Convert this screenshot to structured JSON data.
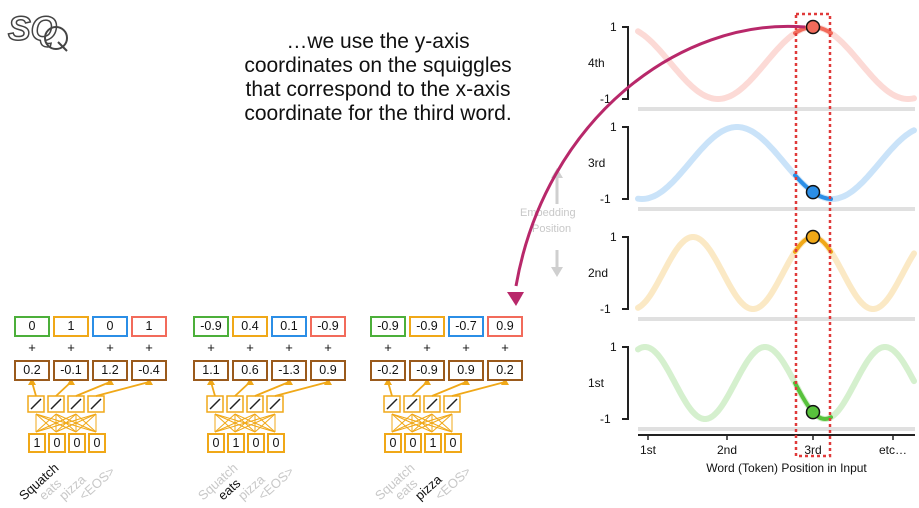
{
  "logo_text": "SQ",
  "caption": [
    "…we use the y-axis",
    "coordinates on the squiggles",
    "that correspond to the x-axis",
    "coordinate for the third word."
  ],
  "token_groups": [
    {
      "pos_values": [
        "0",
        "1",
        "0",
        "1"
      ],
      "emb_values": [
        "0.2",
        "-0.1",
        "1.2",
        "-0.4"
      ],
      "onehot": [
        "1",
        "0",
        "0",
        "0"
      ],
      "active_word": 0
    },
    {
      "pos_values": [
        "-0.9",
        "0.4",
        "0.1",
        "-0.9"
      ],
      "emb_values": [
        "1.1",
        "0.6",
        "-1.3",
        "0.9"
      ],
      "onehot": [
        "0",
        "1",
        "0",
        "0"
      ],
      "active_word": 1
    },
    {
      "pos_values": [
        "-0.9",
        "-0.9",
        "-0.7",
        "0.9"
      ],
      "emb_values": [
        "-0.2",
        "-0.9",
        "0.9",
        "0.2"
      ],
      "onehot": [
        "0",
        "0",
        "1",
        "0"
      ],
      "active_word": 2
    }
  ],
  "words": [
    "Squatch",
    "eats",
    "pizza",
    "<EOS>"
  ],
  "plus_sign": "+",
  "embedding_label": [
    "Embedding",
    "Position"
  ],
  "squiggle_rows": [
    {
      "label": "4th",
      "color": "#f26b5b",
      "freq": 1,
      "phase": 0
    },
    {
      "label": "3rd",
      "color": "#2b8ee6",
      "freq": 1,
      "phase": 1
    },
    {
      "label": "2nd",
      "color": "#f0a818",
      "freq": 2,
      "phase": 0
    },
    {
      "label": "1st",
      "color": "#58c23c",
      "freq": 2,
      "phase": 1
    }
  ],
  "y_tick_top": "1",
  "y_tick_bottom": "-1",
  "x_ticks": [
    "1st",
    "2nd",
    "3rd",
    "etc…"
  ],
  "x_axis_label": "Word (Token) Position in Input",
  "colors": {
    "green": "#4caf3a",
    "orange": "#f0a818",
    "blue": "#2b8ee6",
    "red": "#f26b5b",
    "brown": "#9a5a1c",
    "magenta": "#b8286a",
    "dotted_red": "#e03a3a"
  }
}
